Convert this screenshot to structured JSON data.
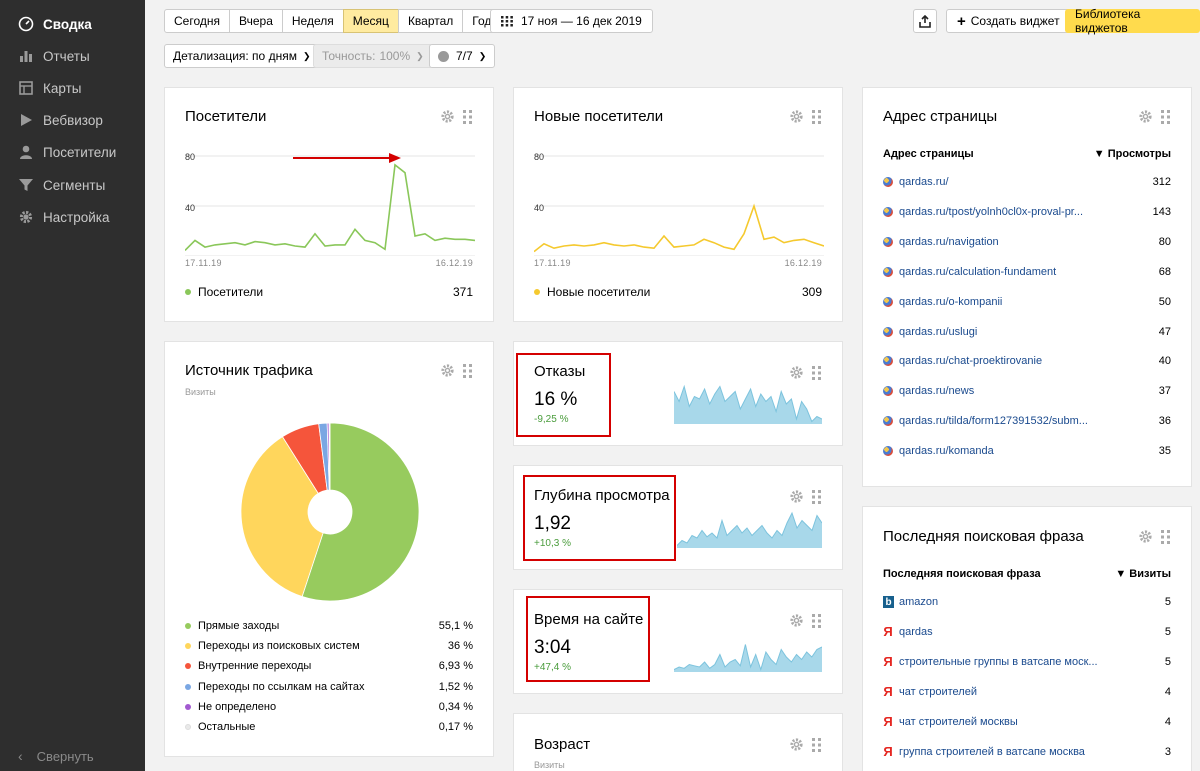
{
  "sidebar": {
    "items": [
      {
        "label": "Сводка",
        "icon": "dashboard-icon"
      },
      {
        "label": "Отчеты",
        "icon": "bar-chart-icon"
      },
      {
        "label": "Карты",
        "icon": "map-icon"
      },
      {
        "label": "Вебвизор",
        "icon": "play-icon"
      },
      {
        "label": "Посетители",
        "icon": "user-icon"
      },
      {
        "label": "Сегменты",
        "icon": "filter-icon"
      },
      {
        "label": "Настройка",
        "icon": "gear-icon"
      }
    ],
    "collapse_label": "Свернуть"
  },
  "toolbar": {
    "periods": [
      "Сегодня",
      "Вчера",
      "Неделя",
      "Месяц",
      "Квартал",
      "Год"
    ],
    "active_period": "Месяц",
    "date_range": "17 ноя — 16 дек 2019",
    "create_widget": "Создать виджет",
    "library": "Библиотека виджетов",
    "detail_label": "Детализация: по дням",
    "accuracy_label": "Точность:",
    "accuracy_value": "100%",
    "segments_label": "7/7"
  },
  "visitors_card": {
    "title": "Посетители",
    "y_ticks": [
      "80",
      "40"
    ],
    "date_start": "17.11.19",
    "date_end": "16.12.19",
    "legend": "Посетители",
    "total": "371",
    "color": "#8ac75a"
  },
  "new_visitors_card": {
    "title": "Новые посетители",
    "y_ticks": [
      "80",
      "40"
    ],
    "date_start": "17.11.19",
    "date_end": "16.12.19",
    "legend": "Новые посетители",
    "total": "309",
    "color": "#f5c92e"
  },
  "traffic_card": {
    "title": "Источник трафика",
    "subtitle": "Визиты",
    "rows": [
      {
        "label": "Прямые заходы",
        "value": "55,1 %",
        "color": "#97cb5e"
      },
      {
        "label": "Переходы из поисковых систем",
        "value": "36 %",
        "color": "#ffd65c"
      },
      {
        "label": "Внутренние переходы",
        "value": "6,93 %",
        "color": "#f5553b"
      },
      {
        "label": "Переходы по ссылкам на сайтах",
        "value": "1,52 %",
        "color": "#7aa7e3"
      },
      {
        "label": "Не определено",
        "value": "0,34 %",
        "color": "#a25ad0"
      },
      {
        "label": "Остальные",
        "value": "0,17 %",
        "color": "#e9e9e9"
      }
    ]
  },
  "metrics": [
    {
      "title": "Отказы",
      "value": "16 %",
      "delta": "-9,25 %"
    },
    {
      "title": "Глубина просмотра",
      "value": "1,92",
      "delta": "+10,3 %"
    },
    {
      "title": "Время на сайте",
      "value": "3:04",
      "delta": "+47,4 %"
    }
  ],
  "age_card": {
    "title": "Возраст",
    "subtitle": "Визиты"
  },
  "pages_card": {
    "title": "Адрес страницы",
    "col_left": "Адрес страницы",
    "col_right": "▼ Просмотры",
    "rows": [
      {
        "url": "qardas.ru/",
        "views": "312"
      },
      {
        "url": "qardas.ru/tpost/yolnh0cl0x-proval-pr...",
        "views": "143"
      },
      {
        "url": "qardas.ru/navigation",
        "views": "80"
      },
      {
        "url": "qardas.ru/calculation-fundament",
        "views": "68"
      },
      {
        "url": "qardas.ru/o-kompanii",
        "views": "50"
      },
      {
        "url": "qardas.ru/uslugi",
        "views": "47"
      },
      {
        "url": "qardas.ru/chat-proektirovanie",
        "views": "40"
      },
      {
        "url": "qardas.ru/news",
        "views": "37"
      },
      {
        "url": "qardas.ru/tilda/form127391532/subm...",
        "views": "36"
      },
      {
        "url": "qardas.ru/komanda",
        "views": "35"
      }
    ]
  },
  "search_card": {
    "title": "Последняя поисковая фраза",
    "col_left": "Последняя поисковая фраза",
    "col_right": "▼ Визиты",
    "rows": [
      {
        "phrase": "amazon",
        "visits": "5",
        "engine": "bing"
      },
      {
        "phrase": "qardas",
        "visits": "5",
        "engine": "yandex"
      },
      {
        "phrase": "строительные группы в ватсапе моск...",
        "visits": "5",
        "engine": "yandex"
      },
      {
        "phrase": "чат строителей",
        "visits": "4",
        "engine": "yandex"
      },
      {
        "phrase": "чат строителей москвы",
        "visits": "4",
        "engine": "yandex"
      },
      {
        "phrase": "группа строителей в ватсапе москва",
        "visits": "3",
        "engine": "yandex"
      }
    ]
  },
  "chart_data": [
    {
      "type": "line",
      "title": "Посетители",
      "series": [
        {
          "name": "Посетители",
          "values": [
            5,
            14,
            8,
            10,
            11,
            12,
            10,
            13,
            12,
            10,
            11,
            9,
            8,
            20,
            9,
            10,
            10,
            24,
            14,
            12,
            6,
            82,
            75,
            18,
            20,
            14,
            16,
            15,
            15,
            14
          ]
        }
      ],
      "ylim": [
        0,
        90
      ],
      "x_start": "17.11.19",
      "x_end": "16.12.19",
      "yticks": [
        40,
        80
      ]
    },
    {
      "type": "line",
      "title": "Новые посетители",
      "series": [
        {
          "name": "Новые посетители",
          "values": [
            4,
            11,
            7,
            9,
            10,
            9,
            10,
            12,
            10,
            9,
            10,
            8,
            7,
            18,
            8,
            9,
            10,
            15,
            12,
            8,
            6,
            20,
            45,
            15,
            17,
            12,
            14,
            15,
            12,
            9
          ]
        }
      ],
      "ylim": [
        0,
        90
      ],
      "x_start": "17.11.19",
      "x_end": "16.12.19",
      "yticks": [
        40,
        80
      ]
    },
    {
      "type": "pie",
      "title": "Источник трафика",
      "categories": [
        "Прямые заходы",
        "Переходы из поисковых систем",
        "Внутренние переходы",
        "Переходы по ссылкам на сайтах",
        "Не определено",
        "Остальные"
      ],
      "values": [
        55.1,
        36,
        6.93,
        1.52,
        0.34,
        0.17
      ]
    },
    {
      "type": "area",
      "title": "Отказы",
      "series": [
        {
          "name": "Отказы",
          "values": [
            26,
            18,
            30,
            14,
            22,
            20,
            28,
            16,
            24,
            30,
            18,
            22,
            26,
            12,
            20,
            28,
            14,
            24,
            18,
            22,
            10,
            26,
            16,
            20,
            4,
            18,
            12,
            2,
            6,
            4
          ]
        }
      ]
    },
    {
      "type": "area",
      "title": "Глубина просмотра",
      "series": [
        {
          "name": "Глубина просмотра",
          "values": [
            2,
            6,
            4,
            10,
            8,
            14,
            9,
            12,
            8,
            22,
            10,
            14,
            18,
            12,
            16,
            10,
            14,
            18,
            12,
            8,
            14,
            10,
            20,
            28,
            16,
            22,
            18,
            14,
            26,
            20
          ]
        }
      ]
    },
    {
      "type": "area",
      "title": "Время на сайте",
      "series": [
        {
          "name": "Время на сайте",
          "values": [
            2,
            4,
            3,
            6,
            5,
            4,
            8,
            3,
            6,
            14,
            4,
            8,
            10,
            5,
            22,
            4,
            14,
            2,
            16,
            10,
            6,
            18,
            12,
            8,
            14,
            10,
            16,
            12,
            18,
            20
          ]
        }
      ]
    }
  ]
}
